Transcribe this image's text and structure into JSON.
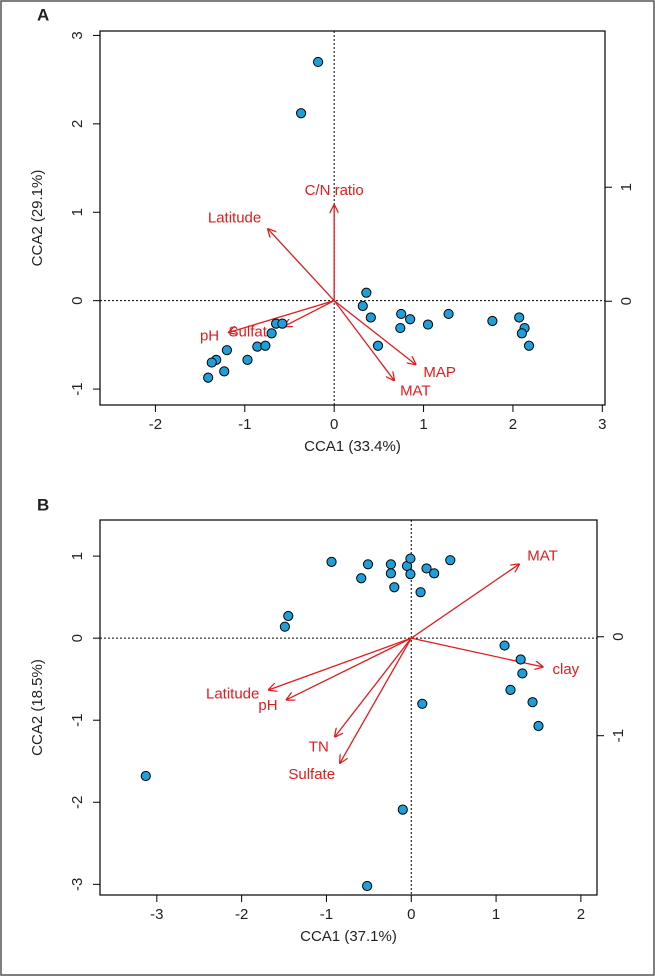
{
  "chart_data": [
    {
      "type": "scatter",
      "panel": "A",
      "xlabel": "CCA1 (33.4%)",
      "ylabel": "CCA2 (29.1%)",
      "color": "#1f9fd9",
      "x": [
        -0.18,
        -0.37,
        0.36,
        0.32,
        0.41,
        0.49,
        0.75,
        0.74,
        0.85,
        1.05,
        1.28,
        1.77,
        2.07,
        2.13,
        2.1,
        2.18,
        -0.65,
        -0.58,
        -0.7,
        -0.86,
        -0.77,
        -0.97,
        -1.2,
        -1.32,
        -1.37,
        -1.23,
        -1.41
      ],
      "y": [
        2.7,
        2.12,
        0.09,
        -0.06,
        -0.19,
        -0.51,
        -0.15,
        -0.31,
        -0.21,
        -0.27,
        -0.15,
        -0.23,
        -0.19,
        -0.31,
        -0.37,
        -0.51,
        -0.26,
        -0.26,
        -0.37,
        -0.52,
        -0.51,
        -0.67,
        -0.56,
        -0.67,
        -0.7,
        -0.8,
        -0.87
      ],
      "vectors": {
        "color": "#e41a1c",
        "names": [
          "Latitude",
          "C/N ratio",
          "pH",
          "Sulfate",
          "MAT",
          "MAP"
        ],
        "x": [
          -0.74,
          0.0,
          -1.18,
          -0.56,
          0.67,
          0.91
        ],
        "y": [
          0.81,
          1.08,
          -0.36,
          -0.29,
          -0.9,
          -0.72
        ]
      },
      "xlim": [
        -2.62,
        3.03
      ],
      "ylim": [
        -1.18,
        3.05
      ],
      "xticks": [
        -2,
        -1,
        0,
        1,
        2,
        3
      ],
      "yticks": [
        -1,
        0,
        1,
        2,
        3
      ],
      "y2lim": [
        -0.91,
        2.37
      ],
      "y2ticks": [
        0,
        1
      ]
    },
    {
      "type": "scatter",
      "panel": "B",
      "xlabel": "CCA1 (37.1%)",
      "ylabel": "CCA2 (18.5%)",
      "color": "#1f9fd9",
      "x": [
        -0.94,
        -0.59,
        -0.51,
        -0.24,
        -0.24,
        -0.2,
        -0.05,
        -0.01,
        -0.01,
        0.11,
        0.18,
        0.27,
        0.46,
        -1.45,
        -1.49,
        1.1,
        1.29,
        1.31,
        1.17,
        1.43,
        1.5,
        0.13,
        -0.1,
        -0.52,
        -3.13
      ],
      "y": [
        0.93,
        0.73,
        0.9,
        0.9,
        0.79,
        0.62,
        0.88,
        0.97,
        0.78,
        0.56,
        0.85,
        0.79,
        0.95,
        0.27,
        0.14,
        -0.09,
        -0.26,
        -0.43,
        -0.63,
        -0.78,
        -1.07,
        -0.8,
        -2.09,
        -3.02,
        -1.68
      ],
      "vectors": {
        "color": "#e41a1c",
        "names": [
          "MAT",
          "clay",
          "Latitude",
          "pH",
          "TN",
          "Sulfate"
        ],
        "x": [
          1.27,
          1.55,
          -1.68,
          -1.47,
          -0.9,
          -0.84
        ],
        "y": [
          0.9,
          -0.35,
          -0.63,
          -0.75,
          -1.2,
          -1.52
        ]
      },
      "xlim": [
        -3.67,
        2.19
      ],
      "ylim": [
        -3.13,
        1.44
      ],
      "xticks": [
        -3,
        -2,
        -1,
        0,
        1,
        2
      ],
      "yticks": [
        -3,
        -2,
        -1,
        0,
        1
      ],
      "y2lim": [
        -2.61,
        1.18
      ],
      "y2ticks": [
        -1,
        0
      ]
    }
  ]
}
